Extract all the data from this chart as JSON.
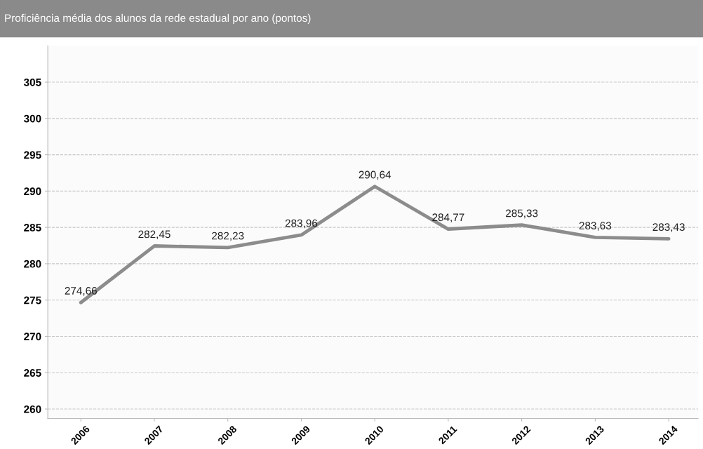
{
  "chart_data": {
    "type": "line",
    "title": "Proficiência média dos alunos da rede estadual por ano (pontos)",
    "categories": [
      "2006",
      "2007",
      "2008",
      "2009",
      "2010",
      "2011",
      "2012",
      "2013",
      "2014"
    ],
    "series": [
      {
        "color": "#8c8c8c",
        "values": [
          274.66,
          282.45,
          282.23,
          283.96,
          290.64,
          284.77,
          285.33,
          283.63,
          283.43
        ],
        "value_labels": [
          "274,66",
          "282,45",
          "282,23",
          "283,96",
          "290,64",
          "284,77",
          "285,33",
          "283,63",
          "283,43"
        ]
      }
    ],
    "ylim": [
      258.7,
      310
    ],
    "yticks": [
      260,
      265,
      270,
      275,
      280,
      285,
      290,
      295,
      300,
      305
    ],
    "grid": "y",
    "marker": "none",
    "line_style": "solid"
  }
}
